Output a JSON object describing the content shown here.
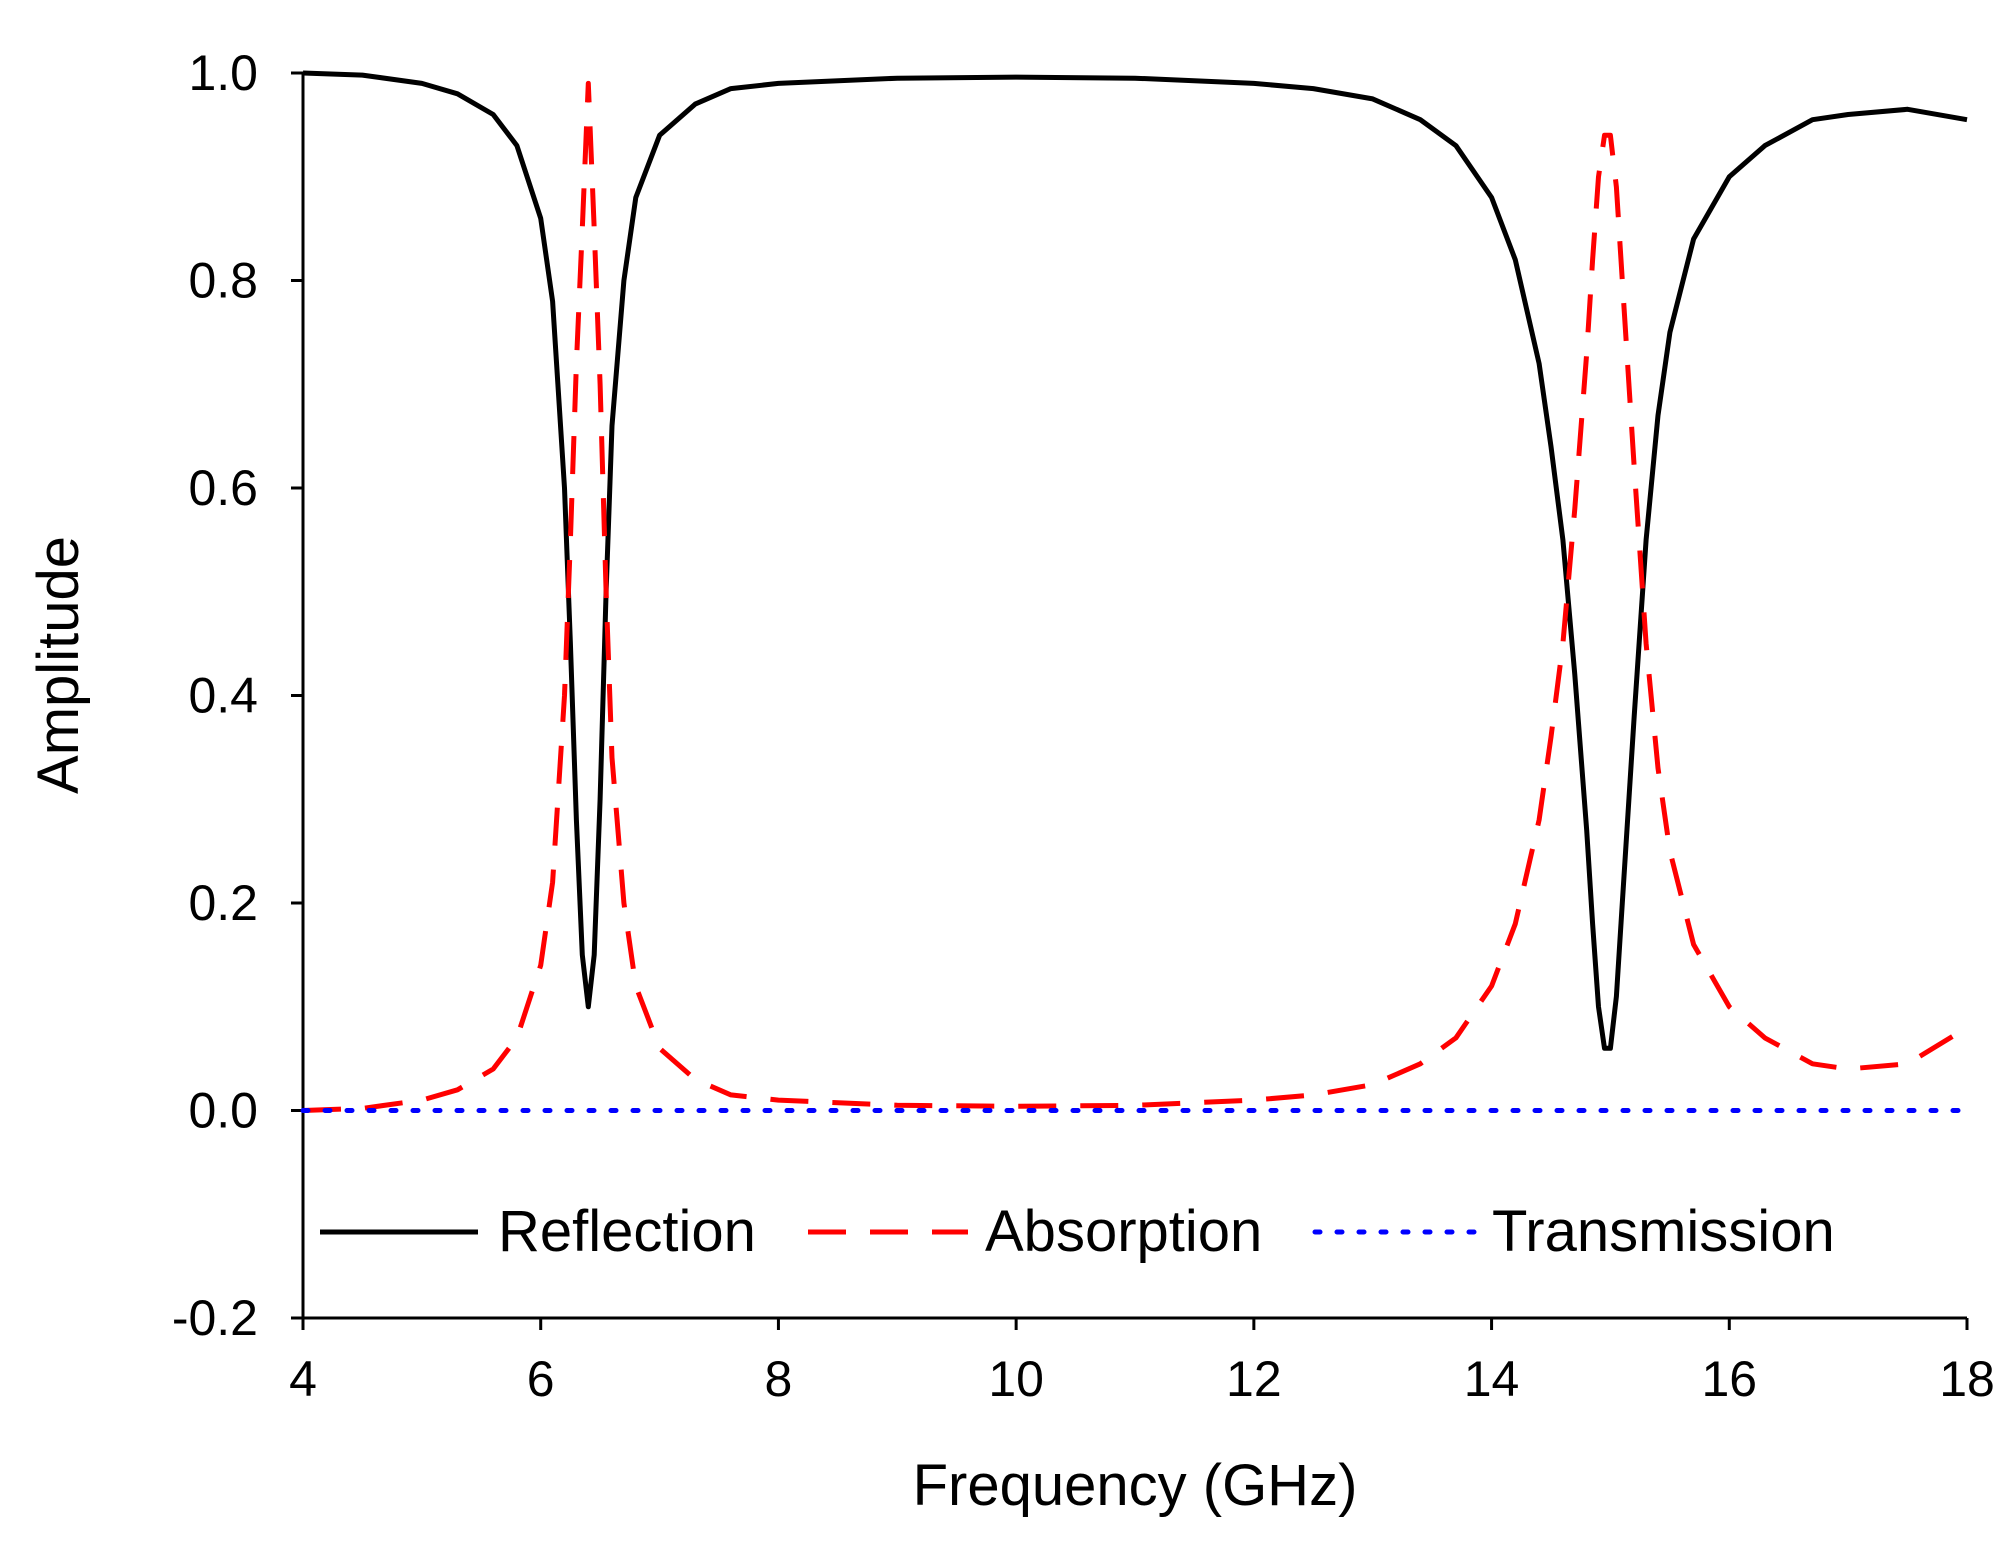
{
  "chart_data": {
    "type": "line",
    "title": "",
    "xlabel": "Frequency (GHz)",
    "ylabel": "Amplitude",
    "xlim": [
      4,
      18
    ],
    "ylim": [
      -0.2,
      1.0
    ],
    "xticks": [
      4,
      6,
      8,
      10,
      12,
      14,
      16,
      18
    ],
    "yticks": [
      -0.2,
      0.0,
      0.2,
      0.4,
      0.6,
      0.8,
      1.0
    ],
    "xtick_labels": [
      "4",
      "6",
      "8",
      "10",
      "12",
      "14",
      "16",
      "18"
    ],
    "ytick_labels": [
      "-0.2",
      "0.0",
      "0.2",
      "0.4",
      "0.6",
      "0.8",
      "1.0"
    ],
    "grid": false,
    "legend_position": "bottom inside, horizontal",
    "series": [
      {
        "name": "Reflection",
        "style": "solid",
        "color": "#000000",
        "x": [
          4.0,
          4.5,
          5.0,
          5.3,
          5.6,
          5.8,
          6.0,
          6.1,
          6.2,
          6.25,
          6.3,
          6.35,
          6.4,
          6.45,
          6.5,
          6.55,
          6.6,
          6.7,
          6.8,
          7.0,
          7.3,
          7.6,
          8.0,
          9.0,
          10.0,
          11.0,
          12.0,
          12.5,
          13.0,
          13.4,
          13.7,
          14.0,
          14.2,
          14.4,
          14.5,
          14.6,
          14.7,
          14.8,
          14.85,
          14.9,
          14.95,
          15.0,
          15.05,
          15.1,
          15.2,
          15.3,
          15.4,
          15.5,
          15.7,
          16.0,
          16.3,
          16.7,
          17.0,
          17.5,
          18.0
        ],
        "y": [
          1.0,
          0.998,
          0.99,
          0.98,
          0.96,
          0.93,
          0.86,
          0.78,
          0.6,
          0.45,
          0.28,
          0.15,
          0.1,
          0.15,
          0.3,
          0.5,
          0.66,
          0.8,
          0.88,
          0.94,
          0.97,
          0.985,
          0.99,
          0.995,
          0.996,
          0.995,
          0.99,
          0.985,
          0.975,
          0.955,
          0.93,
          0.88,
          0.82,
          0.72,
          0.64,
          0.55,
          0.42,
          0.27,
          0.18,
          0.1,
          0.06,
          0.06,
          0.11,
          0.2,
          0.38,
          0.55,
          0.67,
          0.75,
          0.84,
          0.9,
          0.93,
          0.955,
          0.96,
          0.965,
          0.955
        ]
      },
      {
        "name": "Absorption",
        "style": "dashed",
        "color": "#ff0000",
        "x": [
          4.0,
          4.5,
          5.0,
          5.3,
          5.6,
          5.8,
          6.0,
          6.1,
          6.2,
          6.25,
          6.3,
          6.35,
          6.4,
          6.45,
          6.5,
          6.55,
          6.6,
          6.7,
          6.8,
          7.0,
          7.3,
          7.6,
          8.0,
          9.0,
          10.0,
          11.0,
          12.0,
          12.5,
          13.0,
          13.4,
          13.7,
          14.0,
          14.2,
          14.4,
          14.5,
          14.6,
          14.7,
          14.8,
          14.85,
          14.9,
          14.95,
          15.0,
          15.05,
          15.1,
          15.2,
          15.3,
          15.4,
          15.5,
          15.7,
          16.0,
          16.3,
          16.7,
          17.0,
          17.5,
          18.0
        ],
        "y": [
          0.0,
          0.002,
          0.01,
          0.02,
          0.04,
          0.07,
          0.14,
          0.22,
          0.4,
          0.55,
          0.72,
          0.85,
          0.99,
          0.85,
          0.7,
          0.5,
          0.34,
          0.2,
          0.12,
          0.06,
          0.03,
          0.015,
          0.01,
          0.005,
          0.004,
          0.005,
          0.01,
          0.015,
          0.025,
          0.045,
          0.07,
          0.12,
          0.18,
          0.28,
          0.36,
          0.45,
          0.58,
          0.73,
          0.82,
          0.9,
          0.94,
          0.94,
          0.89,
          0.8,
          0.62,
          0.45,
          0.33,
          0.25,
          0.16,
          0.1,
          0.07,
          0.045,
          0.04,
          0.045,
          0.08
        ]
      },
      {
        "name": "Transmission",
        "style": "dotted",
        "color": "#0000ff",
        "x": [
          4.0,
          6.0,
          8.0,
          10.0,
          12.0,
          14.0,
          16.0,
          18.0
        ],
        "y": [
          0.0,
          0.0,
          0.0,
          0.0,
          0.0,
          0.0,
          0.0,
          0.0
        ]
      }
    ]
  }
}
